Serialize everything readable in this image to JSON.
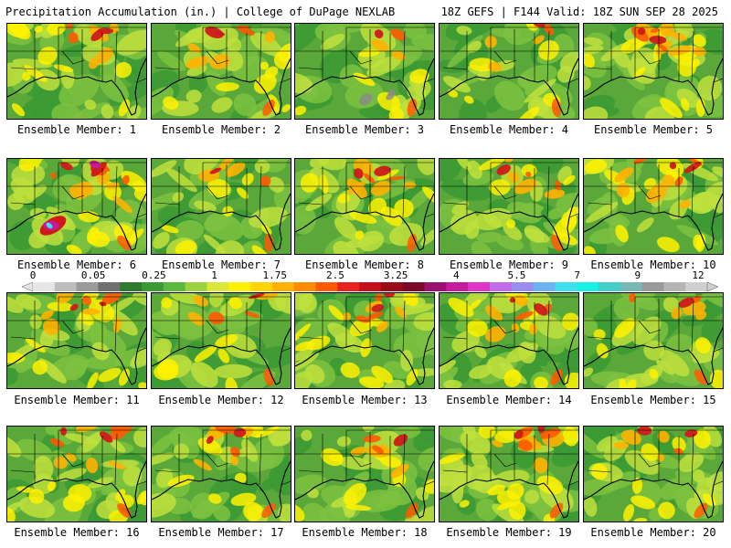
{
  "header": {
    "title": "Precipitation Accumulation (in.) | College of DuPage NEXLAB",
    "info": "18Z GEFS | F144 Valid: 18Z SUN SEP 28 2025"
  },
  "colorbar": {
    "labels": [
      "0",
      "0.05",
      "0.25",
      "1",
      "1.75",
      "2.5",
      "3.25",
      "4",
      "5.5",
      "7",
      "9",
      "12"
    ],
    "colors": [
      "#e6e6e6",
      "#bdbdbd",
      "#9a9a9a",
      "#6f6f6f",
      "#2f7a2f",
      "#3c9a35",
      "#5bb83c",
      "#9cd13f",
      "#dbe83a",
      "#fff200",
      "#ffd400",
      "#ffb300",
      "#ff8c00",
      "#ff5a00",
      "#e8201f",
      "#c40f1a",
      "#9a0b1a",
      "#7a0a2a",
      "#9b0f6e",
      "#c41a9b",
      "#e033c8",
      "#c26bea",
      "#9b8cf0",
      "#6fb2f2",
      "#3fe0ee",
      "#18f2e2",
      "#43cfc8",
      "#7ab8b6",
      "#9a9a9a",
      "#b5b5b5",
      "#cfcfcf"
    ]
  },
  "members": [
    {
      "label": "Ensemble Member: 1",
      "wetness": 0.55
    },
    {
      "label": "Ensemble Member: 2",
      "wetness": 0.5
    },
    {
      "label": "Ensemble Member: 3",
      "wetness": 0.2
    },
    {
      "label": "Ensemble Member: 4",
      "wetness": 0.3
    },
    {
      "label": "Ensemble Member: 5",
      "wetness": 0.75
    },
    {
      "label": "Ensemble Member: 6",
      "wetness": 0.9
    },
    {
      "label": "Ensemble Member: 7",
      "wetness": 0.35
    },
    {
      "label": "Ensemble Member: 8",
      "wetness": 0.6
    },
    {
      "label": "Ensemble Member: 9",
      "wetness": 0.45
    },
    {
      "label": "Ensemble Member: 10",
      "wetness": 0.7
    },
    {
      "label": "Ensemble Member: 11",
      "wetness": 0.6
    },
    {
      "label": "Ensemble Member: 12",
      "wetness": 0.4
    },
    {
      "label": "Ensemble Member: 13",
      "wetness": 0.7
    },
    {
      "label": "Ensemble Member: 14",
      "wetness": 0.6
    },
    {
      "label": "Ensemble Member: 15",
      "wetness": 0.4
    },
    {
      "label": "Ensemble Member: 16",
      "wetness": 0.7
    },
    {
      "label": "Ensemble Member: 17",
      "wetness": 0.5
    },
    {
      "label": "Ensemble Member: 18",
      "wetness": 0.45
    },
    {
      "label": "Ensemble Member: 19",
      "wetness": 0.75
    },
    {
      "label": "Ensemble Member: 20",
      "wetness": 0.55
    }
  ],
  "map_colors": {
    "ocean_base": "#5aa83a",
    "low": "#3c9a35",
    "mid_green": "#7cc23f",
    "light": "#bfe03c",
    "yellow": "#fff200",
    "orange": "#ffb300",
    "red_orange": "#ff5a00",
    "red": "#d01a1a",
    "magenta": "#c41a9b",
    "gray": "#8a8a8a",
    "cyan": "#3fe0ee",
    "lines": "#000000"
  }
}
